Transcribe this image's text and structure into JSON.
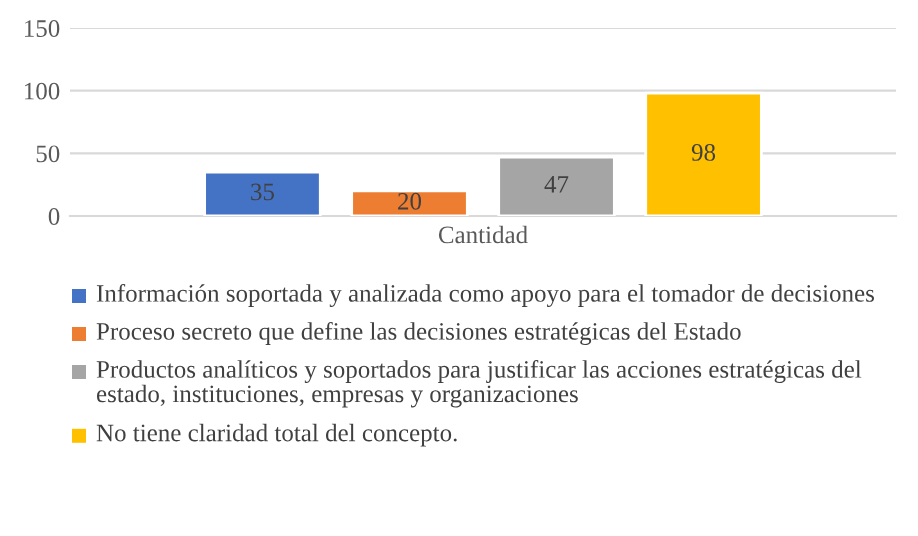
{
  "chart_data": {
    "type": "bar",
    "categories": [
      "Cantidad"
    ],
    "series": [
      {
        "name": "Información soportada y analizada como apoyo para el tomador de decisiones",
        "color": "#4472c4",
        "values": [
          35
        ]
      },
      {
        "name": "Proceso secreto que define las decisiones estratégicas del Estado",
        "color": "#ed7d31",
        "values": [
          20
        ]
      },
      {
        "name": "Productos analíticos y soportados para justificar las acciones estratégicas del estado, instituciones, empresas y organizaciones",
        "color": "#a5a5a5",
        "values": [
          47
        ]
      },
      {
        "name": "No tiene claridad total del concepto.",
        "color": "#ffc000",
        "values": [
          98
        ]
      }
    ],
    "ylim": [
      0,
      150
    ],
    "yticks": [
      0,
      50,
      100,
      150
    ],
    "grid": "y",
    "legend": "bottom",
    "data_labels": true
  }
}
